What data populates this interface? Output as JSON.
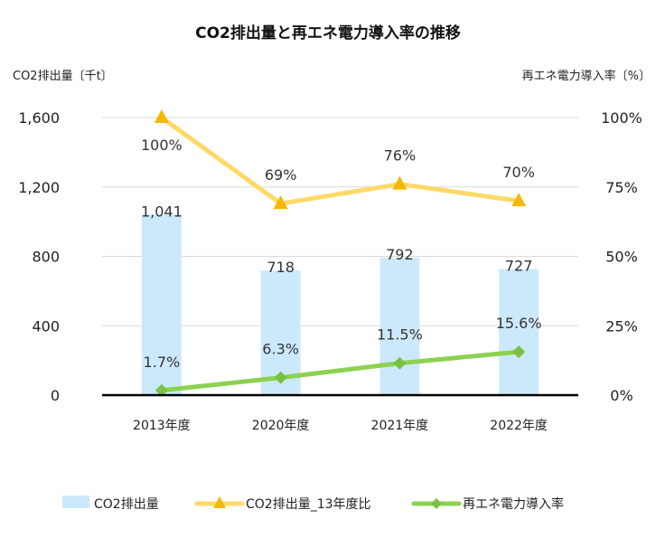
{
  "chart_data": {
    "type": "bar",
    "title": "CO2排出量と再エネ電力導入率の推移",
    "ylabel_left": "CO2排出量〔千t〕",
    "ylabel_right": "再エネ電力導入率〔%〕",
    "categories": [
      "2013年度",
      "2020年度",
      "2021年度",
      "2022年度"
    ],
    "y_left": {
      "min": 0,
      "max": 1600,
      "ticks": [
        0,
        400,
        800,
        1200,
        1600
      ],
      "tick_labels": [
        "0",
        "400",
        "800",
        "1,200",
        "1,600"
      ]
    },
    "y_right": {
      "min": 0,
      "max": 100,
      "ticks": [
        0,
        25,
        50,
        75,
        100
      ],
      "tick_labels": [
        "0%",
        "25%",
        "50%",
        "75%",
        "100%"
      ]
    },
    "grid": true,
    "legend_position": "bottom",
    "series": [
      {
        "name": "CO2排出量",
        "type": "bar",
        "axis": "left",
        "values": [
          1041,
          718,
          792,
          727
        ],
        "labels": [
          "1,041",
          "718",
          "792",
          "727"
        ],
        "color": "#cce9fb"
      },
      {
        "name": "CO2排出量_13年度比",
        "type": "line",
        "axis": "right",
        "marker": "triangle",
        "values": [
          100,
          69,
          76,
          70
        ],
        "labels": [
          "100%",
          "69%",
          "76%",
          "70%"
        ],
        "color": "#ffd966",
        "marker_color": "#f5b800"
      },
      {
        "name": "再エネ電力導入率",
        "type": "line",
        "axis": "right",
        "marker": "diamond",
        "values": [
          1.7,
          6.3,
          11.5,
          15.6
        ],
        "labels": [
          "1.7%",
          "6.3%",
          "11.5%",
          "15.6%"
        ],
        "color": "#8cd150",
        "marker_color": "#7ac143"
      }
    ]
  }
}
